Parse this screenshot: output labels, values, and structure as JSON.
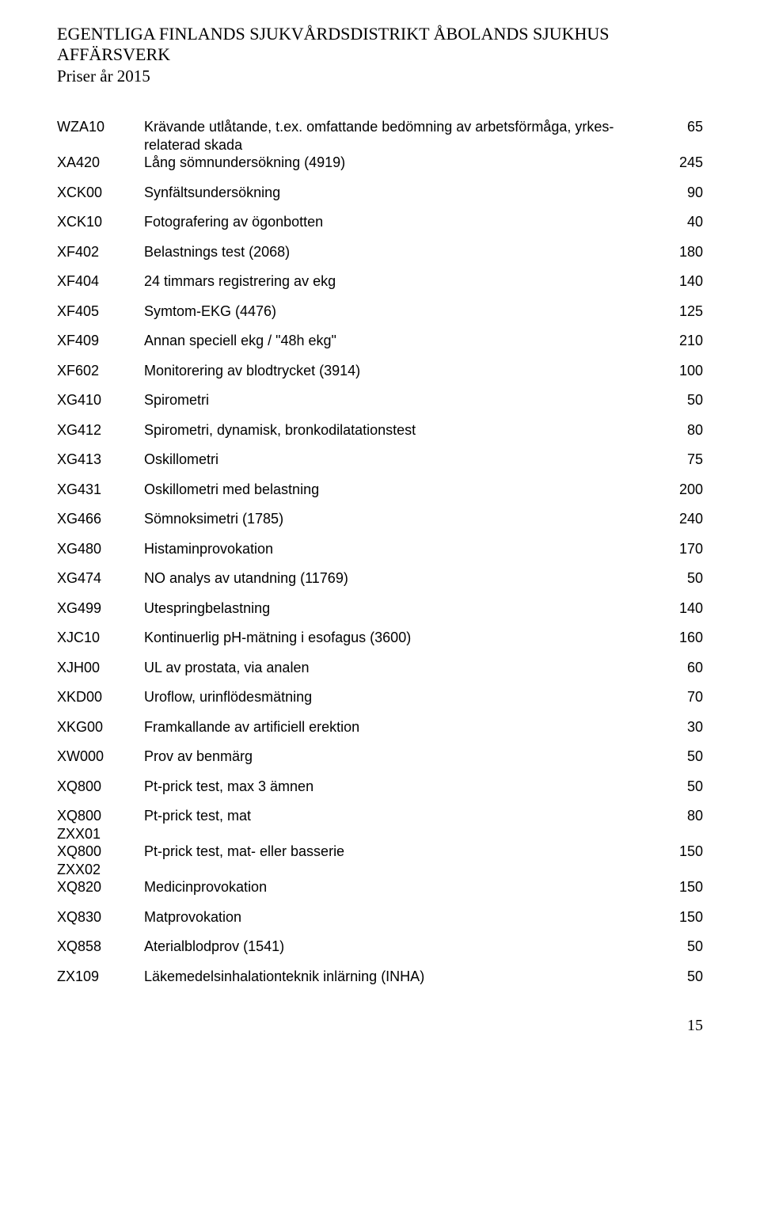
{
  "header": {
    "title": "EGENTLIGA FINLANDS SJUKVÅRDSDISTRIKT ÅBOLANDS SJUKHUS AFFÄRSVERK",
    "subtitle": "Priser år 2015"
  },
  "rows": [
    {
      "code": "WZA10",
      "desc": "Krävande utlåtande, t.ex. omfattande bedömning av arbetsförmåga, yrkes-relaterad skada",
      "price": "65",
      "nomargin": true
    },
    {
      "code": "XA420",
      "desc": "Lång sömnundersökning (4919)",
      "price": "245"
    },
    {
      "code": "XCK00",
      "desc": "Synfältsundersökning",
      "price": "90"
    },
    {
      "code": "XCK10",
      "desc": "Fotografering av ögonbotten",
      "price": "40"
    },
    {
      "code": "XF402",
      "desc": "Belastnings test (2068)",
      "price": "180"
    },
    {
      "code": "XF404",
      "desc": "24 timmars registrering av ekg",
      "price": "140"
    },
    {
      "code": "XF405",
      "desc": "Symtom-EKG (4476)",
      "price": "125"
    },
    {
      "code": "XF409",
      "desc": "Annan speciell ekg / \"48h ekg\"",
      "price": "210"
    },
    {
      "code": "XF602",
      "desc": "Monitorering av blodtrycket (3914)",
      "price": "100"
    },
    {
      "code": "XG410",
      "desc": "Spirometri",
      "price": "50"
    },
    {
      "code": "XG412",
      "desc": "Spirometri, dynamisk, bronkodilatationstest",
      "price": "80"
    },
    {
      "code": "XG413",
      "desc": "Oskillometri",
      "price": "75"
    },
    {
      "code": "XG431",
      "desc": "Oskillometri med belastning",
      "price": "200"
    },
    {
      "code": "XG466",
      "desc": "Sömnoksimetri (1785)",
      "price": "240"
    },
    {
      "code": "XG480",
      "desc": "Histaminprovokation",
      "price": "170"
    },
    {
      "code": "XG474",
      "desc": "NO analys av utandning (11769)",
      "price": "50"
    },
    {
      "code": "XG499",
      "desc": "Utespringbelastning",
      "price": "140"
    },
    {
      "code": "XJC10",
      "desc": "Kontinuerlig pH-mätning i esofagus (3600)",
      "price": "160"
    },
    {
      "code": "XJH00",
      "desc": "UL av prostata, via analen",
      "price": "60"
    },
    {
      "code": "XKD00",
      "desc": "Uroflow, urinflödesmätning",
      "price": "70"
    },
    {
      "code": "XKG00",
      "desc": "Framkallande av artificiell erektion",
      "price": "30"
    },
    {
      "code": "XW000",
      "desc": "Prov av benmärg",
      "price": "50"
    },
    {
      "code": "XQ800",
      "desc": "Pt-prick test, max 3 ämnen",
      "price": "50"
    },
    {
      "code": "XQ800 ZXX01",
      "desc": "Pt-prick test, mat",
      "price": "80",
      "nomargin": true
    },
    {
      "code": "XQ800 ZXX02",
      "desc": "Pt-prick test, mat- eller basserie",
      "price": "150",
      "nomargin": true
    },
    {
      "code": "XQ820",
      "desc": "Medicinprovokation",
      "price": "150"
    },
    {
      "code": "XQ830",
      "desc": "Matprovokation",
      "price": "150"
    },
    {
      "code": "XQ858",
      "desc": "Aterialblodprov (1541)",
      "price": "50"
    },
    {
      "code": "ZX109",
      "desc": "Läkemedelsinhalationteknik inlärning (INHA)",
      "price": "50"
    }
  ],
  "pageNumber": "15"
}
